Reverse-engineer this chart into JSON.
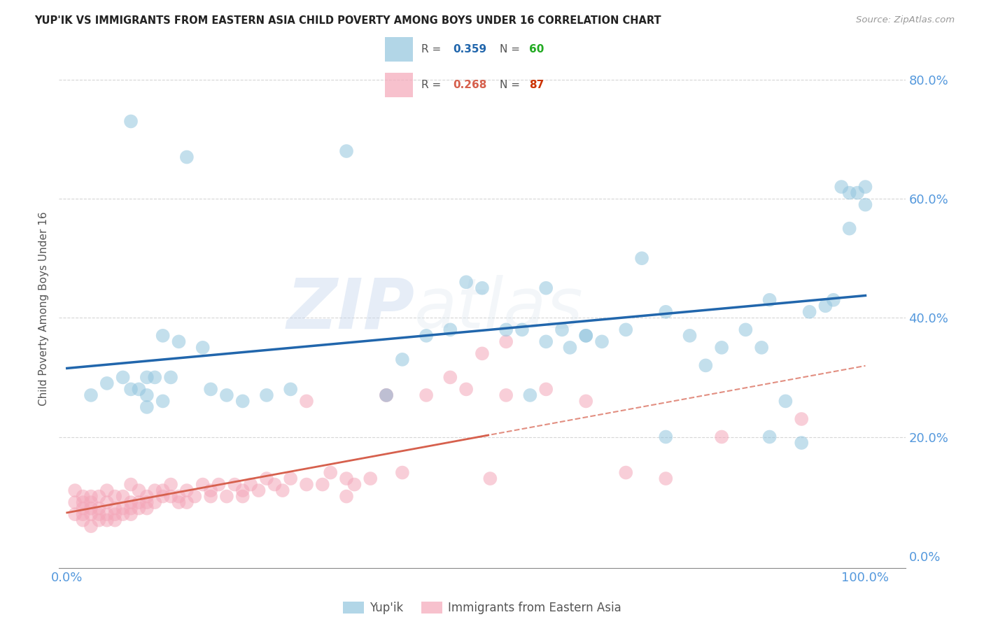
{
  "title": "YUP'IK VS IMMIGRANTS FROM EASTERN ASIA CHILD POVERTY AMONG BOYS UNDER 16 CORRELATION CHART",
  "source": "Source: ZipAtlas.com",
  "ylabel": "Child Poverty Among Boys Under 16",
  "background_color": "#ffffff",
  "watermark_zip": "ZIP",
  "watermark_atlas": "atlas",
  "legend1_R": "0.359",
  "legend1_N": "60",
  "legend2_R": "0.268",
  "legend2_N": "87",
  "blue_color": "#92c5de",
  "pink_color": "#f4a7b9",
  "blue_line_color": "#2166ac",
  "pink_line_color": "#d6604d",
  "grid_color": "#cccccc",
  "axis_label_color": "#5599dd",
  "blue_x": [
    0.03,
    0.05,
    0.07,
    0.08,
    0.08,
    0.09,
    0.1,
    0.1,
    0.1,
    0.11,
    0.12,
    0.12,
    0.13,
    0.14,
    0.15,
    0.17,
    0.18,
    0.2,
    0.22,
    0.25,
    0.28,
    0.35,
    0.4,
    0.42,
    0.45,
    0.48,
    0.5,
    0.52,
    0.55,
    0.57,
    0.58,
    0.6,
    0.62,
    0.63,
    0.65,
    0.67,
    0.7,
    0.72,
    0.75,
    0.78,
    0.8,
    0.82,
    0.85,
    0.87,
    0.88,
    0.9,
    0.92,
    0.93,
    0.95,
    0.96,
    0.97,
    0.98,
    0.99,
    1.0,
    1.0,
    0.6,
    0.65,
    0.75,
    0.88,
    0.98
  ],
  "blue_y": [
    0.27,
    0.29,
    0.3,
    0.73,
    0.28,
    0.28,
    0.3,
    0.27,
    0.25,
    0.3,
    0.26,
    0.37,
    0.3,
    0.36,
    0.67,
    0.35,
    0.28,
    0.27,
    0.26,
    0.27,
    0.28,
    0.68,
    0.27,
    0.33,
    0.37,
    0.38,
    0.46,
    0.45,
    0.38,
    0.38,
    0.27,
    0.36,
    0.38,
    0.35,
    0.37,
    0.36,
    0.38,
    0.5,
    0.41,
    0.37,
    0.32,
    0.35,
    0.38,
    0.35,
    0.43,
    0.26,
    0.19,
    0.41,
    0.42,
    0.43,
    0.62,
    0.55,
    0.61,
    0.59,
    0.62,
    0.45,
    0.37,
    0.2,
    0.2,
    0.61
  ],
  "pink_x": [
    0.01,
    0.01,
    0.01,
    0.02,
    0.02,
    0.02,
    0.02,
    0.02,
    0.03,
    0.03,
    0.03,
    0.03,
    0.03,
    0.04,
    0.04,
    0.04,
    0.04,
    0.05,
    0.05,
    0.05,
    0.05,
    0.06,
    0.06,
    0.06,
    0.06,
    0.07,
    0.07,
    0.07,
    0.08,
    0.08,
    0.08,
    0.08,
    0.09,
    0.09,
    0.09,
    0.1,
    0.1,
    0.1,
    0.11,
    0.11,
    0.12,
    0.12,
    0.13,
    0.13,
    0.14,
    0.14,
    0.15,
    0.15,
    0.16,
    0.17,
    0.18,
    0.18,
    0.19,
    0.2,
    0.21,
    0.22,
    0.22,
    0.23,
    0.24,
    0.25,
    0.26,
    0.27,
    0.28,
    0.3,
    0.3,
    0.32,
    0.33,
    0.35,
    0.36,
    0.38,
    0.4,
    0.42,
    0.45,
    0.48,
    0.5,
    0.52,
    0.53,
    0.55,
    0.35,
    0.4,
    0.55,
    0.6,
    0.65,
    0.7,
    0.75,
    0.82,
    0.92
  ],
  "pink_y": [
    0.07,
    0.09,
    0.11,
    0.06,
    0.07,
    0.08,
    0.09,
    0.1,
    0.05,
    0.07,
    0.08,
    0.09,
    0.1,
    0.06,
    0.07,
    0.08,
    0.1,
    0.06,
    0.07,
    0.09,
    0.11,
    0.06,
    0.07,
    0.08,
    0.1,
    0.07,
    0.08,
    0.1,
    0.07,
    0.08,
    0.09,
    0.12,
    0.08,
    0.09,
    0.11,
    0.08,
    0.09,
    0.1,
    0.09,
    0.11,
    0.1,
    0.11,
    0.1,
    0.12,
    0.09,
    0.1,
    0.09,
    0.11,
    0.1,
    0.12,
    0.1,
    0.11,
    0.12,
    0.1,
    0.12,
    0.1,
    0.11,
    0.12,
    0.11,
    0.13,
    0.12,
    0.11,
    0.13,
    0.26,
    0.12,
    0.12,
    0.14,
    0.13,
    0.12,
    0.13,
    0.27,
    0.14,
    0.27,
    0.3,
    0.28,
    0.34,
    0.13,
    0.27,
    0.1,
    0.27,
    0.36,
    0.28,
    0.26,
    0.14,
    0.13,
    0.2,
    0.23
  ],
  "ytick_values": [
    0.0,
    0.2,
    0.4,
    0.6,
    0.8
  ],
  "xtick_values": [
    0.0,
    0.2,
    0.4,
    0.6,
    0.8,
    1.0
  ],
  "ylim": [
    -0.02,
    0.85
  ],
  "xlim": [
    -0.01,
    1.05
  ]
}
